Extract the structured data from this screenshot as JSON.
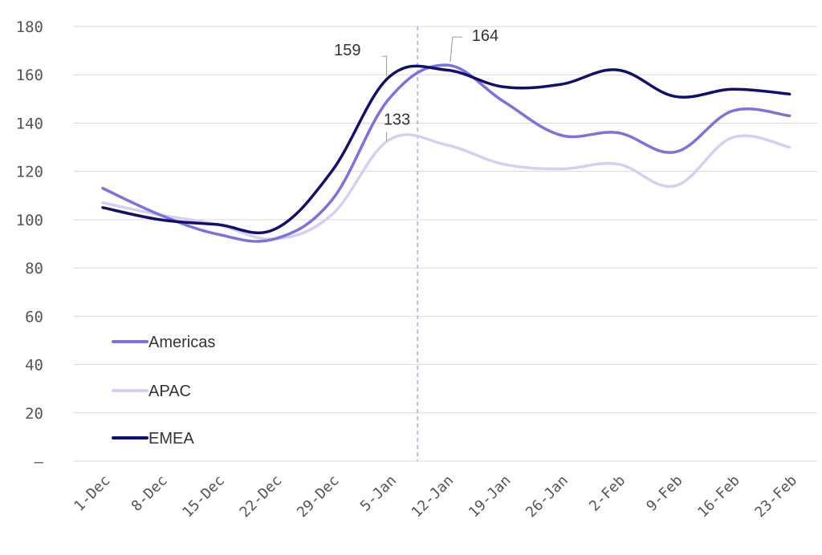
{
  "chart_data": {
    "type": "line",
    "categories": [
      "1-Dec",
      "8-Dec",
      "15-Dec",
      "22-Dec",
      "29-Dec",
      "5-Jan",
      "12-Jan",
      "19-Jan",
      "26-Jan",
      "2-Feb",
      "9-Feb",
      "16-Feb",
      "23-Feb"
    ],
    "y_ticks": [
      "–",
      "20",
      "40",
      "60",
      "80",
      "100",
      "120",
      "140",
      "160",
      "180"
    ],
    "ylim": [
      0,
      180
    ],
    "grid": true,
    "legend_position": "bottom-left inside plot",
    "vertical_marker_between": [
      "5-Jan",
      "12-Jan"
    ],
    "series": [
      {
        "name": "Americas",
        "color": "#7b72e0",
        "values": [
          113,
          102,
          94,
          92,
          108,
          150,
          164,
          149,
          135,
          136,
          128,
          145,
          143
        ]
      },
      {
        "name": "APAC",
        "color": "#d4d0f5",
        "values": [
          107,
          102,
          98,
          92,
          102,
          133,
          131,
          123,
          121,
          123,
          114,
          134,
          130
        ]
      },
      {
        "name": "EMEA",
        "color": "#100f6e",
        "values": [
          105,
          100,
          98,
          96,
          120,
          159,
          162,
          155,
          156,
          162,
          151,
          154,
          152
        ]
      }
    ],
    "annotations": [
      {
        "series": "EMEA",
        "text": "159"
      },
      {
        "series": "Americas",
        "text": "164"
      },
      {
        "series": "APAC",
        "text": "133"
      }
    ]
  }
}
